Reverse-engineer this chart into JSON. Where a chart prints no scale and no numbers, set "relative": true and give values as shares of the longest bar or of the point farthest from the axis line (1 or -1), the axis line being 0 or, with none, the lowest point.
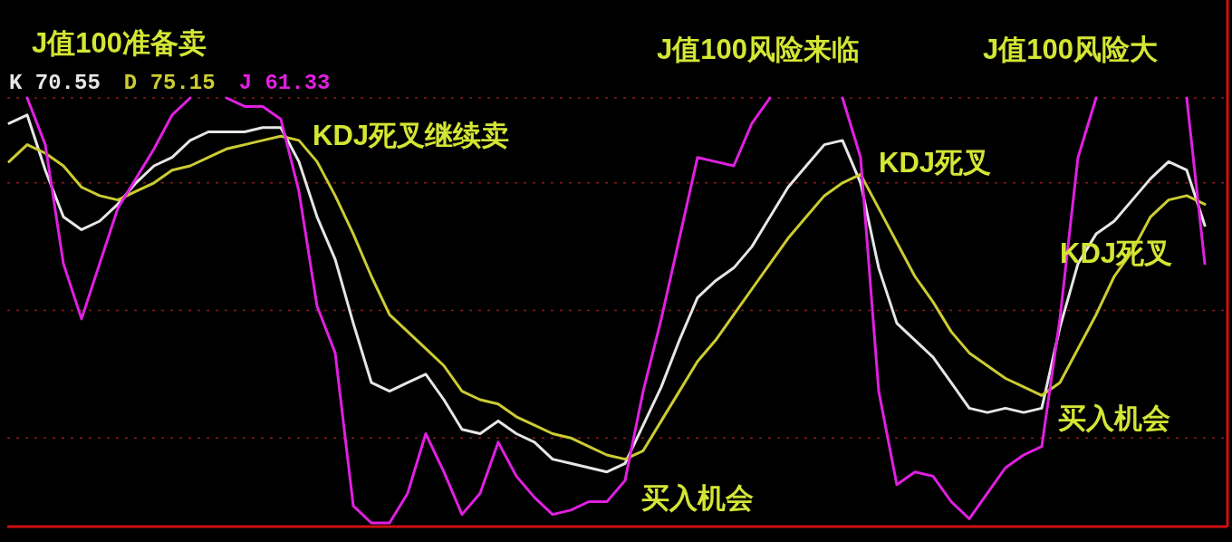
{
  "chart_data": {
    "type": "line",
    "relative": true,
    "legend": "top left",
    "categories": [
      null,
      null,
      null,
      null,
      null,
      null,
      null,
      null,
      null,
      null,
      null,
      null,
      null,
      null,
      null,
      null,
      null,
      null,
      null,
      null,
      null,
      null,
      null,
      null,
      null,
      null,
      null,
      null,
      null,
      null,
      null,
      null,
      null,
      null,
      null,
      null,
      null,
      null,
      null,
      null,
      null,
      null,
      null,
      null,
      null,
      null,
      null,
      null,
      null,
      null,
      null,
      null,
      null,
      null,
      null,
      null,
      null,
      null,
      null,
      null,
      null,
      null,
      null,
      null,
      null,
      null,
      null
    ],
    "series": [
      {
        "name": "K 70.55",
        "color": "#e6e6e6",
        "values": [
          0.94,
          0.96,
          0.83,
          0.72,
          0.69,
          0.71,
          0.75,
          0.8,
          0.84,
          0.86,
          0.9,
          0.92,
          0.92,
          0.92,
          0.93,
          0.93,
          0.85,
          0.72,
          0.62,
          0.47,
          0.33,
          0.31,
          0.33,
          0.35,
          0.29,
          0.22,
          0.21,
          0.24,
          0.21,
          0.19,
          0.15,
          0.14,
          0.13,
          0.12,
          0.14,
          0.23,
          0.32,
          0.43,
          0.53,
          0.57,
          0.6,
          0.65,
          0.72,
          0.79,
          0.84,
          0.89,
          0.9,
          0.8,
          0.6,
          0.47,
          0.43,
          0.39,
          0.33,
          0.27,
          0.26,
          0.27,
          0.26,
          0.27,
          0.46,
          0.61,
          0.68,
          0.71,
          0.76,
          0.81,
          0.85,
          0.83,
          0.7
        ]
      },
      {
        "name": "D 75.15",
        "color": "#cccc33",
        "values": [
          0.85,
          0.89,
          0.87,
          0.84,
          0.79,
          0.77,
          0.76,
          0.78,
          0.8,
          0.83,
          0.84,
          0.86,
          0.88,
          0.89,
          0.9,
          0.91,
          0.9,
          0.85,
          0.77,
          0.68,
          0.58,
          0.49,
          0.45,
          0.41,
          0.37,
          0.31,
          0.29,
          0.28,
          0.25,
          0.23,
          0.21,
          0.2,
          0.18,
          0.16,
          0.15,
          0.17,
          0.24,
          0.31,
          0.38,
          0.43,
          0.49,
          0.55,
          0.61,
          0.67,
          0.72,
          0.77,
          0.8,
          0.82,
          0.74,
          0.66,
          0.58,
          0.52,
          0.45,
          0.4,
          0.37,
          0.34,
          0.32,
          0.3,
          0.33,
          0.41,
          0.49,
          0.58,
          0.64,
          0.72,
          0.76,
          0.77,
          0.75
        ]
      },
      {
        "name": "J 61.33",
        "color": "#e020e0",
        "values": [
          null,
          1.0,
          0.89,
          0.61,
          0.48,
          0.61,
          0.74,
          0.81,
          0.88,
          0.96,
          1.0,
          null,
          1.0,
          0.98,
          0.98,
          0.95,
          0.78,
          0.51,
          0.4,
          0.04,
          0.0,
          0.0,
          0.07,
          0.21,
          0.12,
          0.02,
          0.07,
          0.19,
          0.11,
          0.06,
          0.02,
          0.03,
          0.05,
          0.05,
          0.1,
          0.31,
          0.48,
          0.67,
          0.86,
          0.85,
          0.84,
          0.94,
          1.0,
          null,
          null,
          null,
          1.0,
          0.86,
          0.31,
          0.09,
          0.12,
          0.11,
          0.05,
          0.01,
          0.07,
          0.13,
          0.16,
          0.18,
          0.48,
          0.86,
          1.0,
          null,
          null,
          null,
          null,
          1.0,
          0.61
        ]
      }
    ],
    "ref_lines": [
      {
        "axis": "y",
        "value": 1.0,
        "color": "#8b1a1a",
        "line_style": "dotted"
      },
      {
        "axis": "y",
        "value": 0.8,
        "color": "#8b1a1a",
        "line_style": "dotted"
      },
      {
        "axis": "y",
        "value": 0.5,
        "color": "#8b1a1a",
        "line_style": "dotted"
      },
      {
        "axis": "y",
        "value": 0.2,
        "color": "#8b1a1a",
        "line_style": "dotted"
      }
    ],
    "annotations": [
      "J值100准备卖",
      "KDJ死叉继续卖",
      "J值100风险来临",
      "KDJ死叉",
      "J值100风险大",
      "KDJ死叉",
      "买入机会",
      "买入机会"
    ]
  }
}
